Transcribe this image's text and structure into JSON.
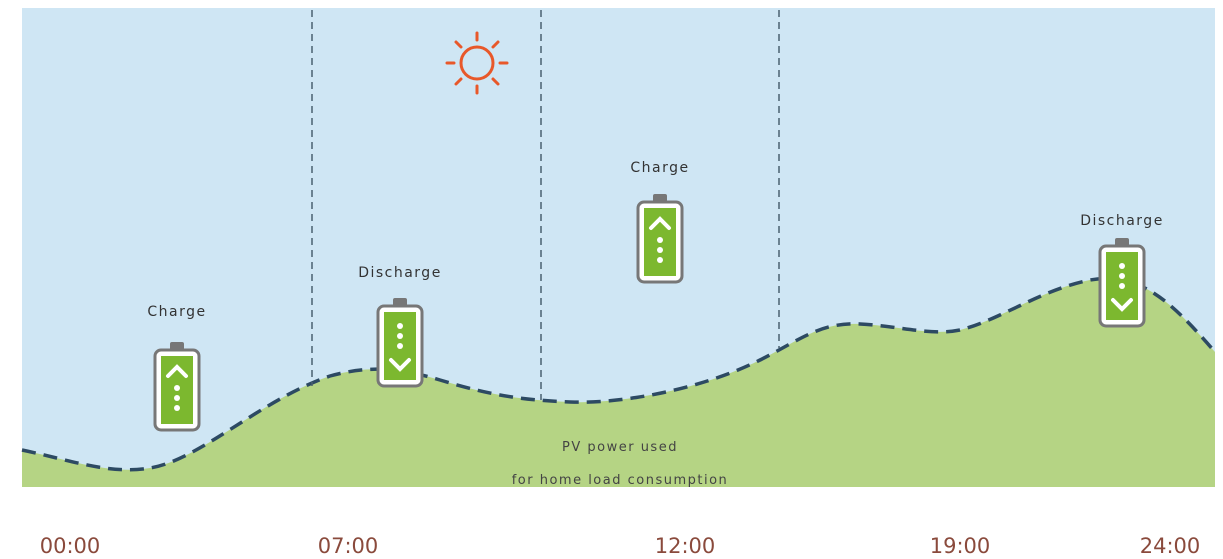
{
  "batteries": [
    {
      "label": "Charge"
    },
    {
      "label": "Discharge"
    },
    {
      "label": "Charge"
    },
    {
      "label": "Discharge"
    }
  ],
  "pv_text": [
    "PV power used",
    "for home load consumption"
  ],
  "times": [
    "00:00",
    "07:00",
    "12:00",
    "19:00",
    "24:00"
  ]
}
